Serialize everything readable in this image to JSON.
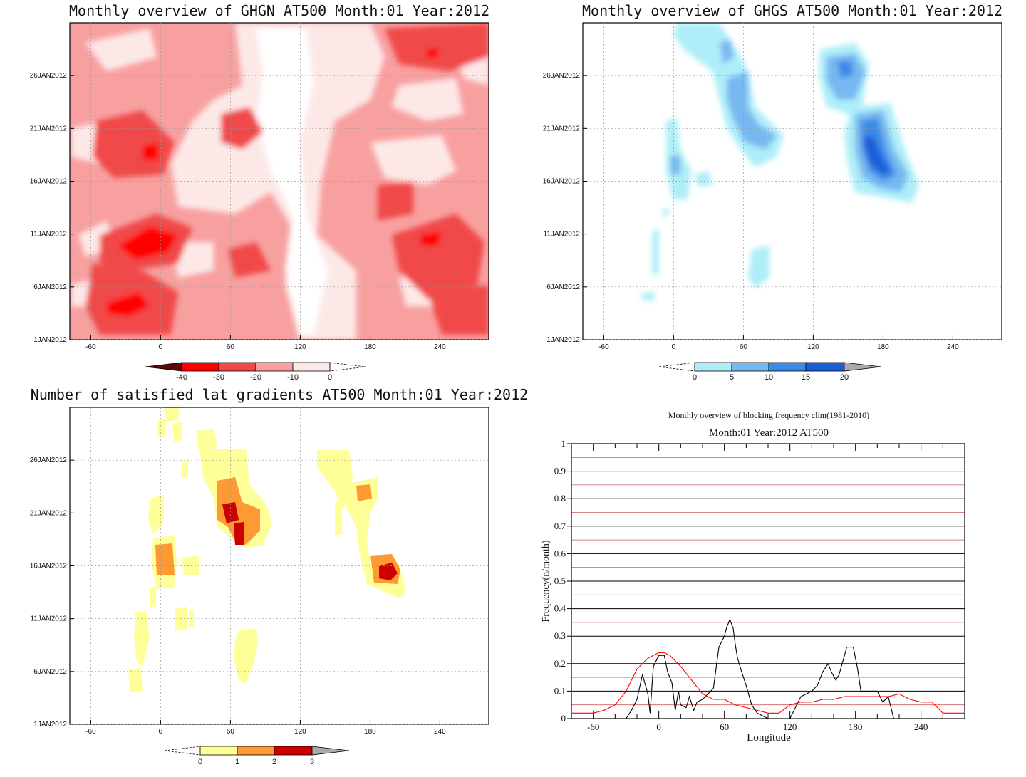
{
  "panels": {
    "ghgn": {
      "title": "Monthly overview of GHGN AT500 Month:01 Year:2012"
    },
    "ghgs": {
      "title": "Monthly overview of GHGS AT500 Month:01 Year:2012"
    },
    "lat": {
      "title": "Number of satisfied lat gradients AT500 Month:01 Year:2012"
    },
    "freq": {
      "title1": "Monthly overview of blocking frequency clim(1981-2010)",
      "title2": "Month:01 Year:2012  AT500"
    }
  },
  "axes": {
    "lon_ticks": [
      "-60",
      "0",
      "60",
      "120",
      "180",
      "240"
    ],
    "date_ticks": [
      "1JAN2012",
      "6JAN2012",
      "11JAN2012",
      "16JAN2012",
      "21JAN2012",
      "26JAN2012"
    ]
  },
  "colorbars": {
    "ghgn": {
      "labels": [
        "-40",
        "-30",
        "-20",
        "-10",
        "0"
      ],
      "colors": [
        "#5a0a0a",
        "#ff0000",
        "#f04848",
        "#f8a0a0",
        "#fde8e8"
      ]
    },
    "ghgs": {
      "labels": [
        "0",
        "5",
        "10",
        "15",
        "20"
      ],
      "colors": [
        "#aeeef8",
        "#78b8f0",
        "#3c8ae8",
        "#1a5ed8",
        "#aaaaaa"
      ]
    },
    "lat": {
      "labels": [
        "0",
        "1",
        "2",
        "3"
      ],
      "colors": [
        "#ffff99",
        "#ff9933",
        "#cc0000",
        "#aaaaaa"
      ]
    }
  },
  "chart_data": [
    {
      "type": "heatmap",
      "title": "Monthly overview of GHGN AT500 Month:01 Year:2012",
      "xlim": [
        -78,
        282
      ],
      "x_ticks": [
        -60,
        0,
        60,
        120,
        180,
        240
      ],
      "y_ticks": [
        "1JAN2012",
        "6JAN2012",
        "11JAN2012",
        "16JAN2012",
        "21JAN2012",
        "26JAN2012"
      ],
      "levels": [
        -40,
        -30,
        -20,
        -10,
        0
      ]
    },
    {
      "type": "heatmap",
      "title": "Monthly overview of GHGS AT500 Month:01 Year:2012",
      "xlim": [
        -78,
        282
      ],
      "x_ticks": [
        -60,
        0,
        60,
        120,
        180,
        240
      ],
      "y_ticks": [
        "1JAN2012",
        "6JAN2012",
        "11JAN2012",
        "16JAN2012",
        "21JAN2012",
        "26JAN2012"
      ],
      "levels": [
        0,
        5,
        10,
        15,
        20
      ]
    },
    {
      "type": "heatmap",
      "title": "Number of satisfied lat gradients AT500 Month:01 Year:2012",
      "xlim": [
        -78,
        282
      ],
      "x_ticks": [
        -60,
        0,
        60,
        120,
        180,
        240
      ],
      "y_ticks": [
        "1JAN2012",
        "6JAN2012",
        "11JAN2012",
        "16JAN2012",
        "21JAN2012",
        "26JAN2012"
      ],
      "levels": [
        0,
        1,
        2,
        3
      ]
    },
    {
      "type": "line",
      "title": "Monthly overview of blocking frequency clim(1981-2010)",
      "subtitle": "Month:01 Year:2012  AT500",
      "xlabel": "Longitude",
      "ylabel": "Frequency(n/month)",
      "xlim": [
        -80,
        280
      ],
      "ylim": [
        0,
        1
      ],
      "x_ticks": [
        -60,
        0,
        60,
        120,
        180,
        240
      ],
      "y_ticks": [
        0,
        0.1,
        0.2,
        0.3,
        0.4,
        0.5,
        0.6,
        0.7,
        0.8,
        0.9,
        1
      ],
      "series": [
        {
          "color": "#000000",
          "x": [
            -80,
            -30,
            -25,
            -20,
            -15,
            -10,
            -8,
            -5,
            0,
            5,
            8,
            12,
            15,
            18,
            20,
            25,
            28,
            32,
            35,
            40,
            50,
            55,
            60,
            62,
            65,
            68,
            70,
            72,
            75,
            80,
            85,
            90,
            95,
            100,
            110,
            120,
            130,
            140,
            145,
            150,
            155,
            158,
            162,
            165,
            170,
            172,
            175,
            178,
            180,
            182,
            185,
            190,
            195,
            200,
            205,
            210,
            215,
            220,
            225,
            280
          ],
          "y": [
            0,
            0,
            0.03,
            0.07,
            0.16,
            0.09,
            0.02,
            0.19,
            0.23,
            0.23,
            0.17,
            0.13,
            0.03,
            0.1,
            0.05,
            0.04,
            0.08,
            0.03,
            0.06,
            0.07,
            0.11,
            0.26,
            0.3,
            0.33,
            0.36,
            0.33,
            0.27,
            0.22,
            0.18,
            0.12,
            0.05,
            0.02,
            0.01,
            0,
            0,
            0,
            0.08,
            0.1,
            0.12,
            0.17,
            0.2,
            0.17,
            0.14,
            0.16,
            0.23,
            0.26,
            0.26,
            0.26,
            0.22,
            0.18,
            0.1,
            0.1,
            0.1,
            0.1,
            0.06,
            0.08,
            0,
            0,
            0,
            0
          ]
        },
        {
          "color": "#ff0000",
          "x": [
            -80,
            -60,
            -50,
            -40,
            -30,
            -20,
            -10,
            -5,
            0,
            5,
            10,
            15,
            20,
            30,
            40,
            50,
            60,
            70,
            80,
            90,
            100,
            110,
            120,
            130,
            140,
            150,
            160,
            170,
            180,
            190,
            200,
            210,
            220,
            230,
            240,
            250,
            260,
            270,
            280
          ],
          "y": [
            0.02,
            0.02,
            0.03,
            0.05,
            0.1,
            0.18,
            0.22,
            0.23,
            0.24,
            0.24,
            0.23,
            0.21,
            0.19,
            0.14,
            0.09,
            0.07,
            0.07,
            0.05,
            0.04,
            0.03,
            0.02,
            0.02,
            0.05,
            0.06,
            0.06,
            0.07,
            0.07,
            0.08,
            0.08,
            0.08,
            0.08,
            0.08,
            0.09,
            0.07,
            0.06,
            0.06,
            0.02,
            0.02,
            0.02
          ]
        }
      ]
    }
  ]
}
